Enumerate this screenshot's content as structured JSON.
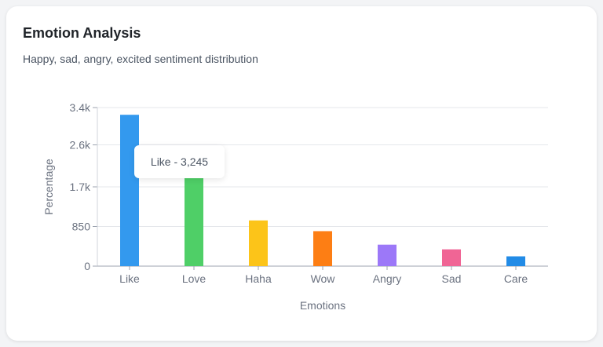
{
  "card": {
    "title": "Emotion Analysis",
    "subtitle": "Happy, sad, angry, excited sentiment distribution"
  },
  "tooltip": {
    "text": "Like - 3,245"
  },
  "chart_data": {
    "type": "bar",
    "title": "Emotion Analysis",
    "subtitle": "Happy, sad, angry, excited sentiment distribution",
    "xlabel": "Emotions",
    "ylabel": "Percentage",
    "categories": [
      "Like",
      "Love",
      "Haha",
      "Wow",
      "Angry",
      "Sad",
      "Care"
    ],
    "values": [
      3245,
      1890,
      980,
      750,
      460,
      360,
      210
    ],
    "colors": [
      "#3399ee",
      "#4fcf67",
      "#fcc419",
      "#fd7e14",
      "#9c78f8",
      "#f06595",
      "#228be6"
    ],
    "ylim": [
      0,
      3400
    ],
    "yticks": [
      0,
      850,
      1700,
      2600,
      3400
    ],
    "ytick_labels": [
      "0",
      "850",
      "1.7k",
      "2.6k",
      "3.4k"
    ],
    "grid": true,
    "legend": "none"
  }
}
